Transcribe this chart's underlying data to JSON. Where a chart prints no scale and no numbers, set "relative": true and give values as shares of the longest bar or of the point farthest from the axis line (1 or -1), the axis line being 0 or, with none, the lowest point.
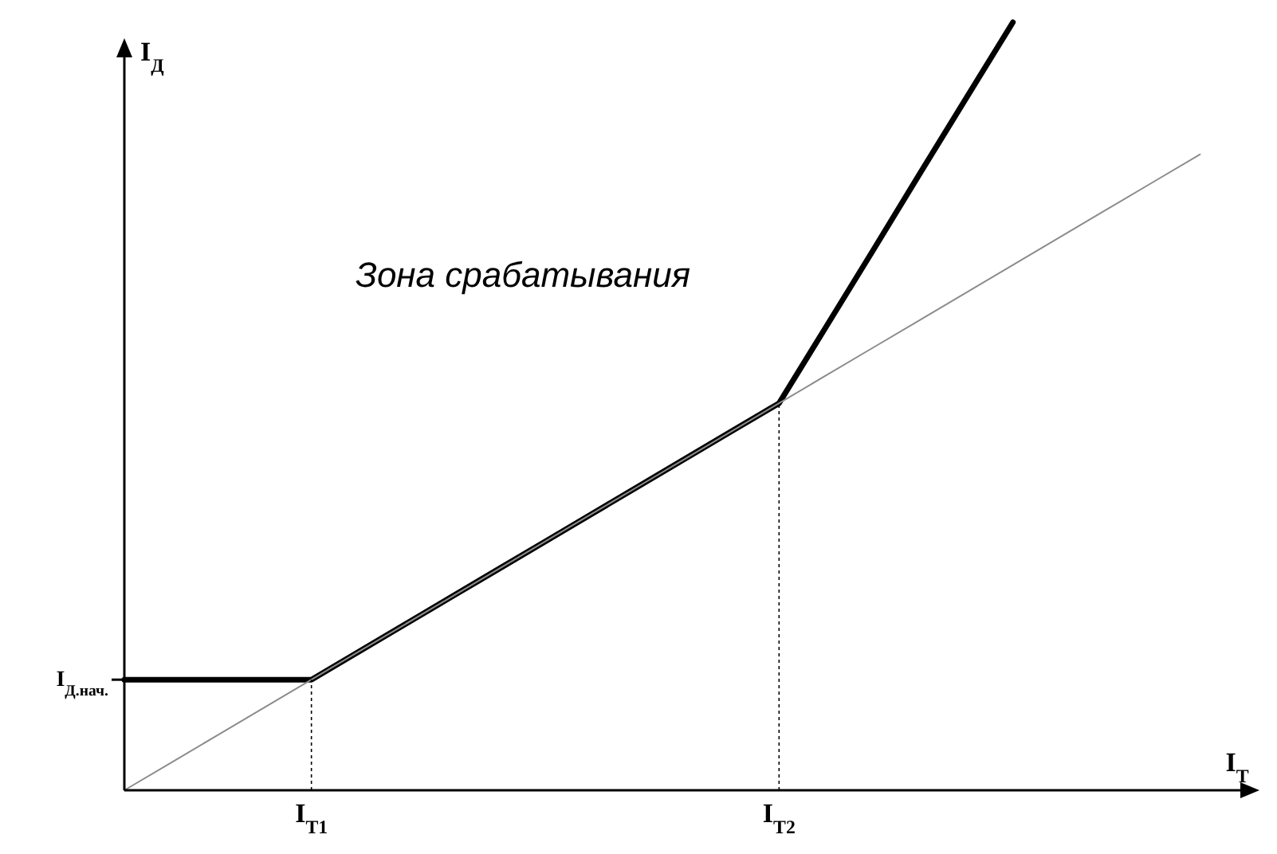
{
  "chart_data": {
    "type": "line",
    "relative": true,
    "xlabel": "I$_{Т}$",
    "ylabel": "I$_{Д}$",
    "categories": [
      null,
      null,
      null,
      null,
      "I$_{Т1}$",
      null,
      null,
      null,
      null,
      null,
      null,
      null,
      null,
      null,
      "I$_{Т2}$",
      null,
      null,
      null,
      null,
      null,
      null,
      null,
      null,
      null,
      null
    ],
    "marker": "none",
    "line_style": "solid",
    "series": [
      {
        "color": "#000000",
        "values": [
          0.144,
          0.144,
          0.144,
          0.144,
          0.144,
          0.18,
          0.216,
          0.252,
          0.288,
          0.324,
          0.36,
          0.396,
          0.432,
          0.468,
          0.504,
          0.603,
          0.702,
          0.802,
          0.901,
          1.0,
          null,
          null,
          null,
          null,
          null
        ]
      },
      {
        "color": "#8c8c8c",
        "values": [
          0,
          0.036,
          0.072,
          0.108,
          0.144,
          0.18,
          0.216,
          0.252,
          0.288,
          0.324,
          0.36,
          0.396,
          0.432,
          0.468,
          0.504,
          0.54,
          0.576,
          0.612,
          0.648,
          0.684,
          0.72,
          0.756,
          0.792,
          0.828,
          null
        ]
      }
    ],
    "ref_lines": [
      {
        "axis": "x",
        "value": "I$_{Т1}$",
        "line_style": "dotted"
      },
      {
        "axis": "x",
        "value": "I$_{Т2}$",
        "line_style": "dotted"
      },
      {
        "axis": "y",
        "value": 0.144,
        "label": "I$_{Д.нач.}$",
        "line_style": "solid"
      }
    ],
    "annotations": [
      "Зона срабатывания"
    ]
  }
}
